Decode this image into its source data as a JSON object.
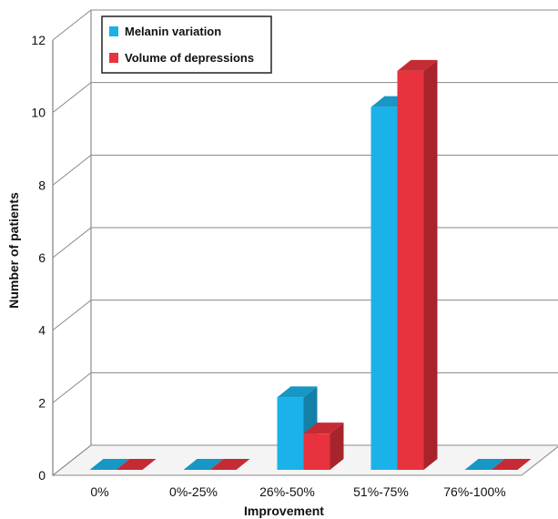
{
  "chart_data": {
    "type": "bar",
    "title": "",
    "xlabel": "Improvement",
    "ylabel": "Number of patients",
    "categories": [
      "0%",
      "0%-25%",
      "26%-50%",
      "51%-75%",
      "76%-100%"
    ],
    "series": [
      {
        "name": "Melanin variation",
        "values": [
          0,
          0,
          2,
          10,
          0
        ],
        "color": "#1ab2e8"
      },
      {
        "name": "Volume of depressions",
        "values": [
          0,
          0,
          1,
          11,
          0
        ],
        "color": "#e8323e"
      }
    ],
    "ylim": [
      0,
      12
    ],
    "yticks": [
      0,
      2,
      4,
      6,
      8,
      10,
      12
    ],
    "grid": true,
    "legend_position": "top-left",
    "style": "3d-clustered"
  }
}
